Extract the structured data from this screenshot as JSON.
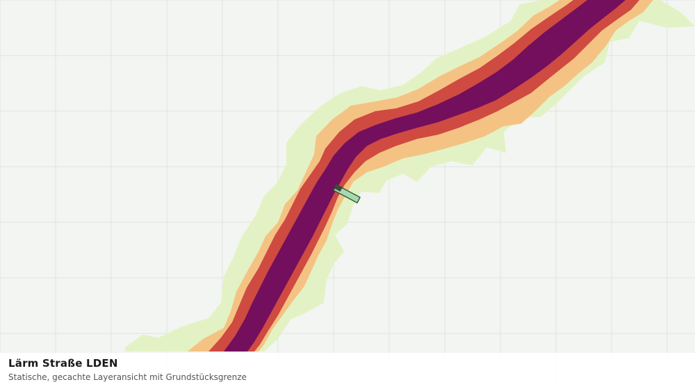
{
  "map": {
    "background_color": "#f3f5f2",
    "grid_color": "#dfe3df",
    "parcel_fill": "#a8d8b0",
    "parcel_stroke": "#2f5a3a",
    "noise_bands": [
      {
        "name": "band-lowest",
        "color": "#e3f2c4"
      },
      {
        "name": "band-low",
        "color": "#f4c384"
      },
      {
        "name": "band-mid",
        "color": "#cf4a41"
      },
      {
        "name": "band-high",
        "color": "#730f5c"
      }
    ]
  },
  "caption": {
    "title": "Lärm Straße LDEN",
    "subtitle": "Statische, gecachte Layeransicht mit Grundstücksgrenze"
  }
}
